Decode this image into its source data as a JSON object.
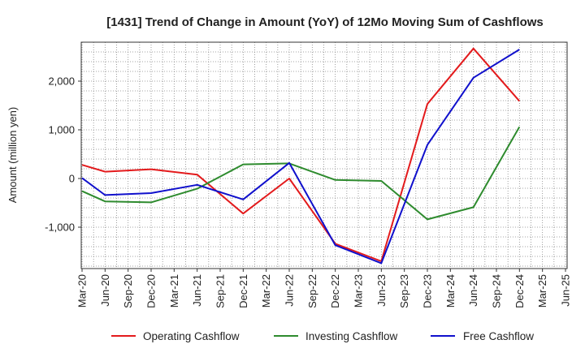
{
  "chart_data": {
    "type": "line",
    "title": "[1431]  Trend of Change in Amount (YoY) of 12Mo Moving Sum of Cashflows",
    "xlabel": "",
    "ylabel": "Amount (million yen)",
    "ylim": [
      -1850,
      2800
    ],
    "yticks": [
      -1000,
      0,
      1000,
      2000
    ],
    "ytick_labels": [
      "-1,000",
      "0",
      "1,000",
      "2,000"
    ],
    "grid": true,
    "legend_position": "bottom",
    "categories": [
      "Mar-20",
      "Jun-20",
      "Sep-20",
      "Dec-20",
      "Mar-21",
      "Jun-21",
      "Sep-21",
      "Dec-21",
      "Mar-22",
      "Jun-22",
      "Sep-22",
      "Dec-22",
      "Mar-23",
      "Jun-23",
      "Sep-23",
      "Dec-23",
      "Mar-24",
      "Jun-24",
      "Sep-24",
      "Dec-24",
      "Mar-25",
      "Jun-25"
    ],
    "series": [
      {
        "name": "Operating Cashflow",
        "color": "#e31a1c",
        "values": [
          280,
          140,
          null,
          190,
          null,
          80,
          null,
          -720,
          null,
          0,
          null,
          -1340,
          null,
          -1700,
          null,
          1530,
          null,
          2670,
          null,
          1590,
          null,
          null
        ]
      },
      {
        "name": "Investing Cashflow",
        "color": "#2e8b2e",
        "values": [
          -260,
          -470,
          null,
          -490,
          null,
          -210,
          null,
          290,
          null,
          310,
          null,
          -30,
          null,
          -50,
          null,
          -840,
          null,
          -590,
          null,
          1060,
          null,
          null
        ]
      },
      {
        "name": "Free Cashflow",
        "color": "#1010cc",
        "values": [
          10,
          -340,
          null,
          -300,
          null,
          -130,
          null,
          -430,
          null,
          320,
          null,
          -1370,
          null,
          -1740,
          null,
          690,
          null,
          2070,
          null,
          2650,
          null,
          null
        ]
      }
    ]
  }
}
